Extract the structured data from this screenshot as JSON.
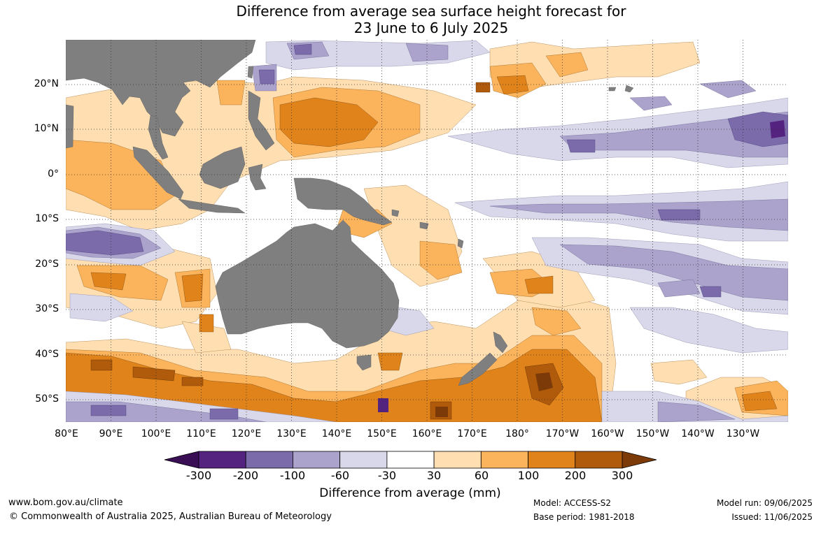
{
  "title": {
    "line1": "Difference from average sea surface height forecast for",
    "line2": "23 June to 6 July 2025"
  },
  "map": {
    "lat_labels": [
      "20°N",
      "10°N",
      "0°",
      "10°S",
      "20°S",
      "30°S",
      "40°S",
      "50°S"
    ],
    "lon_labels": [
      "80°E",
      "90°E",
      "100°E",
      "110°E",
      "120°E",
      "130°E",
      "140°E",
      "150°E",
      "160°E",
      "170°E",
      "180°",
      "170°W",
      "160°W",
      "150°W",
      "140°W",
      "130°W"
    ],
    "land_color": "#7f7f7f",
    "grid": "dotted"
  },
  "legend": {
    "title": "Difference from average (mm)",
    "bins": [
      {
        "range": "< -300",
        "color": "#3a0e55"
      },
      {
        "range": "-300 to -200",
        "color": "#54237f"
      },
      {
        "range": "-200 to -100",
        "color": "#7b6baa"
      },
      {
        "range": "-100 to -60",
        "color": "#aba3cc"
      },
      {
        "range": "-60 to -30",
        "color": "#d8d8ea"
      },
      {
        "range": "-30 to 30",
        "color": "#ffffff"
      },
      {
        "range": "30 to 60",
        "color": "#ffdfb1"
      },
      {
        "range": "60 to 100",
        "color": "#fbb35c"
      },
      {
        "range": "100 to 200",
        "color": "#e0831a"
      },
      {
        "range": "200 to 300",
        "color": "#b05a0b"
      },
      {
        "range": "> 300",
        "color": "#7b3a08"
      }
    ],
    "tick_labels": [
      "-300",
      "-200",
      "-100",
      "-60",
      "-30",
      "30",
      "60",
      "100",
      "200",
      "300"
    ]
  },
  "footer": {
    "website": "www.bom.gov.au/climate",
    "copyright": "© Commonwealth of Australia 2025, Australian Bureau of Meteorology",
    "model": "Model: ACCESS-S2",
    "base_period": "Base period: 1981-2018",
    "model_run": "Model run: 09/06/2025",
    "issued": "Issued: 11/06/2025"
  }
}
